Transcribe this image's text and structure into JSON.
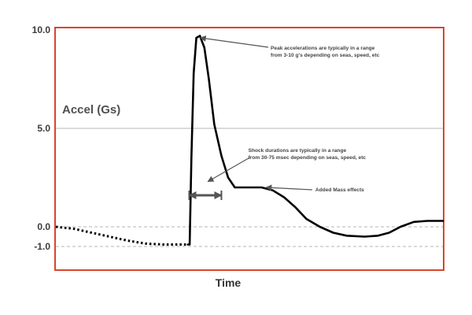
{
  "chart_data": {
    "type": "line",
    "title": "",
    "ylabel": "Accel (Gs)",
    "xlabel": "Time",
    "ylim": [
      -1.0,
      10.0
    ],
    "y_ticks": [
      "10.0",
      "5.0",
      "0.0",
      "-1.0"
    ],
    "y_tick_values": [
      10.0,
      5.0,
      0.0,
      -1.0
    ],
    "grid": "horizontal lines at 5.0 (solid), 0.0 and -1.0 (dashed)",
    "colors": {
      "frame": "#d9452c",
      "curve": "#000000",
      "grid": "#b4b4b4",
      "arrow": "#555555"
    },
    "series": [
      {
        "style": "dotted",
        "points": [
          [
            0,
            0.0
          ],
          [
            4,
            -0.1
          ],
          [
            8,
            -0.3
          ],
          [
            12,
            -0.5
          ],
          [
            16,
            -0.7
          ],
          [
            20,
            -0.85
          ],
          [
            24,
            -0.9
          ],
          [
            29.5,
            -0.9
          ]
        ]
      },
      {
        "style": "solid",
        "points": [
          [
            29.5,
            -0.9
          ],
          [
            29.9,
            -0.9
          ],
          [
            30.3,
            3.5
          ],
          [
            30.8,
            7.8
          ],
          [
            31.4,
            9.6
          ],
          [
            32.2,
            9.7
          ],
          [
            33.2,
            9.1
          ],
          [
            34.2,
            7.5
          ],
          [
            35.4,
            5.2
          ],
          [
            37.0,
            3.6
          ],
          [
            38.5,
            2.5
          ],
          [
            40.0,
            2.0
          ],
          [
            43.0,
            2.0
          ],
          [
            46.0,
            2.0
          ],
          [
            48.5,
            1.85
          ],
          [
            51.0,
            1.5
          ],
          [
            53.5,
            1.0
          ],
          [
            56.0,
            0.4
          ],
          [
            59.0,
            0.0
          ],
          [
            62.0,
            -0.3
          ],
          [
            65.0,
            -0.45
          ],
          [
            69.0,
            -0.5
          ],
          [
            72.0,
            -0.45
          ],
          [
            74.5,
            -0.3
          ],
          [
            77.0,
            0.0
          ],
          [
            80.0,
            0.25
          ],
          [
            83.0,
            0.3
          ],
          [
            86.0,
            0.3
          ],
          [
            86.5,
            0.3
          ]
        ]
      }
    ],
    "annotations": [
      {
        "lines": [
          "Peak accelerations are typically in a range",
          "from 3-10 g's depending on seas, speed, etc"
        ],
        "x": 48,
        "y": 9.0,
        "arrow_to": [
          32.3,
          9.6
        ]
      },
      {
        "lines": [
          "Shock durations are typically in a range",
          "from 30-75 msec depending on seas, speed, etc"
        ],
        "x": 43,
        "y": 3.8,
        "arrow_to": [
          34.0,
          2.3
        ]
      },
      {
        "lines": [
          "Added Mass effects"
        ],
        "x": 58,
        "y": 1.8,
        "arrow_to": [
          47.0,
          2.0
        ]
      }
    ],
    "duration_marker": {
      "x_start": 29.8,
      "x_end": 37.0,
      "y": 1.6,
      "style": "double-arrow"
    },
    "xlim": [
      0,
      86.5
    ]
  }
}
